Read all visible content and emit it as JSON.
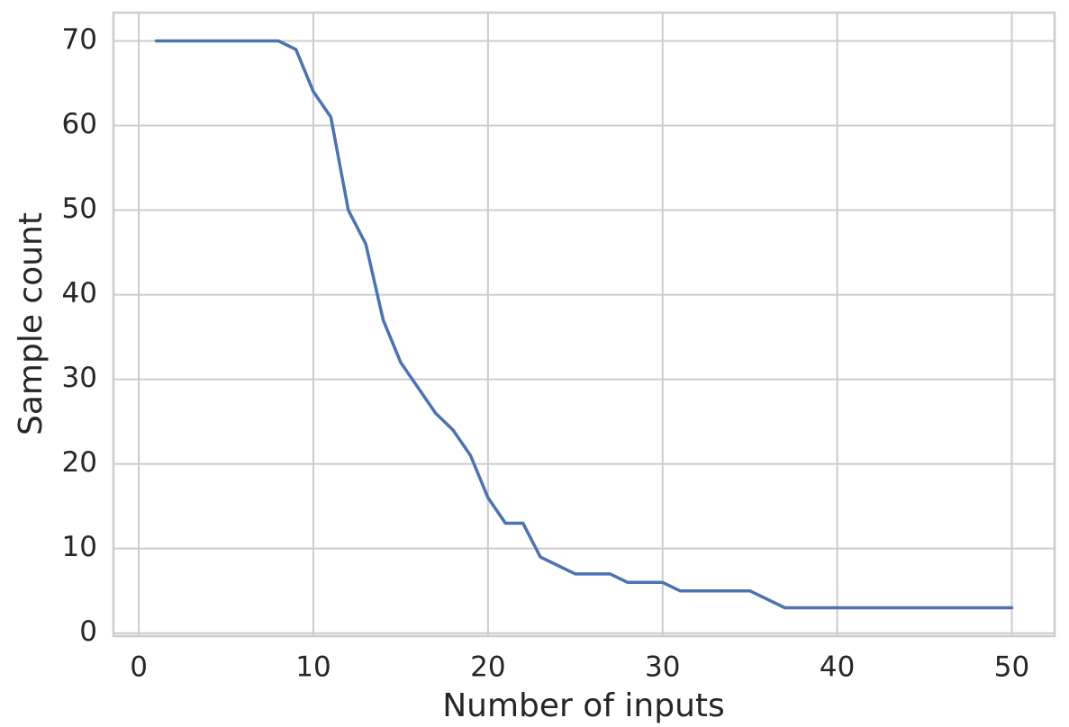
{
  "chart_data": {
    "type": "line",
    "xlabel": "Number of inputs",
    "ylabel": "Sample count",
    "x": [
      1,
      2,
      3,
      4,
      5,
      6,
      7,
      8,
      9,
      10,
      11,
      12,
      13,
      14,
      15,
      16,
      17,
      18,
      19,
      20,
      21,
      22,
      23,
      24,
      25,
      26,
      27,
      28,
      29,
      30,
      31,
      32,
      33,
      34,
      35,
      36,
      37,
      38,
      39,
      40,
      41,
      42,
      43,
      44,
      45,
      46,
      47,
      48,
      49,
      50
    ],
    "values": [
      70,
      70,
      70,
      70,
      70,
      70,
      70,
      70,
      69,
      64,
      61,
      50,
      46,
      37,
      32,
      29,
      26,
      24,
      21,
      16,
      13,
      13,
      9,
      8,
      7,
      7,
      7,
      6,
      6,
      6,
      5,
      5,
      5,
      5,
      5,
      4,
      3,
      3,
      3,
      3,
      3,
      3,
      3,
      3,
      3,
      3,
      3,
      3,
      3,
      3
    ],
    "color": "#4c72b0",
    "xlim": [
      -1.45,
      52.45
    ],
    "ylim": [
      -0.35,
      73.35
    ],
    "xticks": [
      0,
      10,
      20,
      30,
      40,
      50
    ],
    "yticks": [
      0,
      10,
      20,
      30,
      40,
      50,
      60,
      70
    ],
    "grid": true
  }
}
